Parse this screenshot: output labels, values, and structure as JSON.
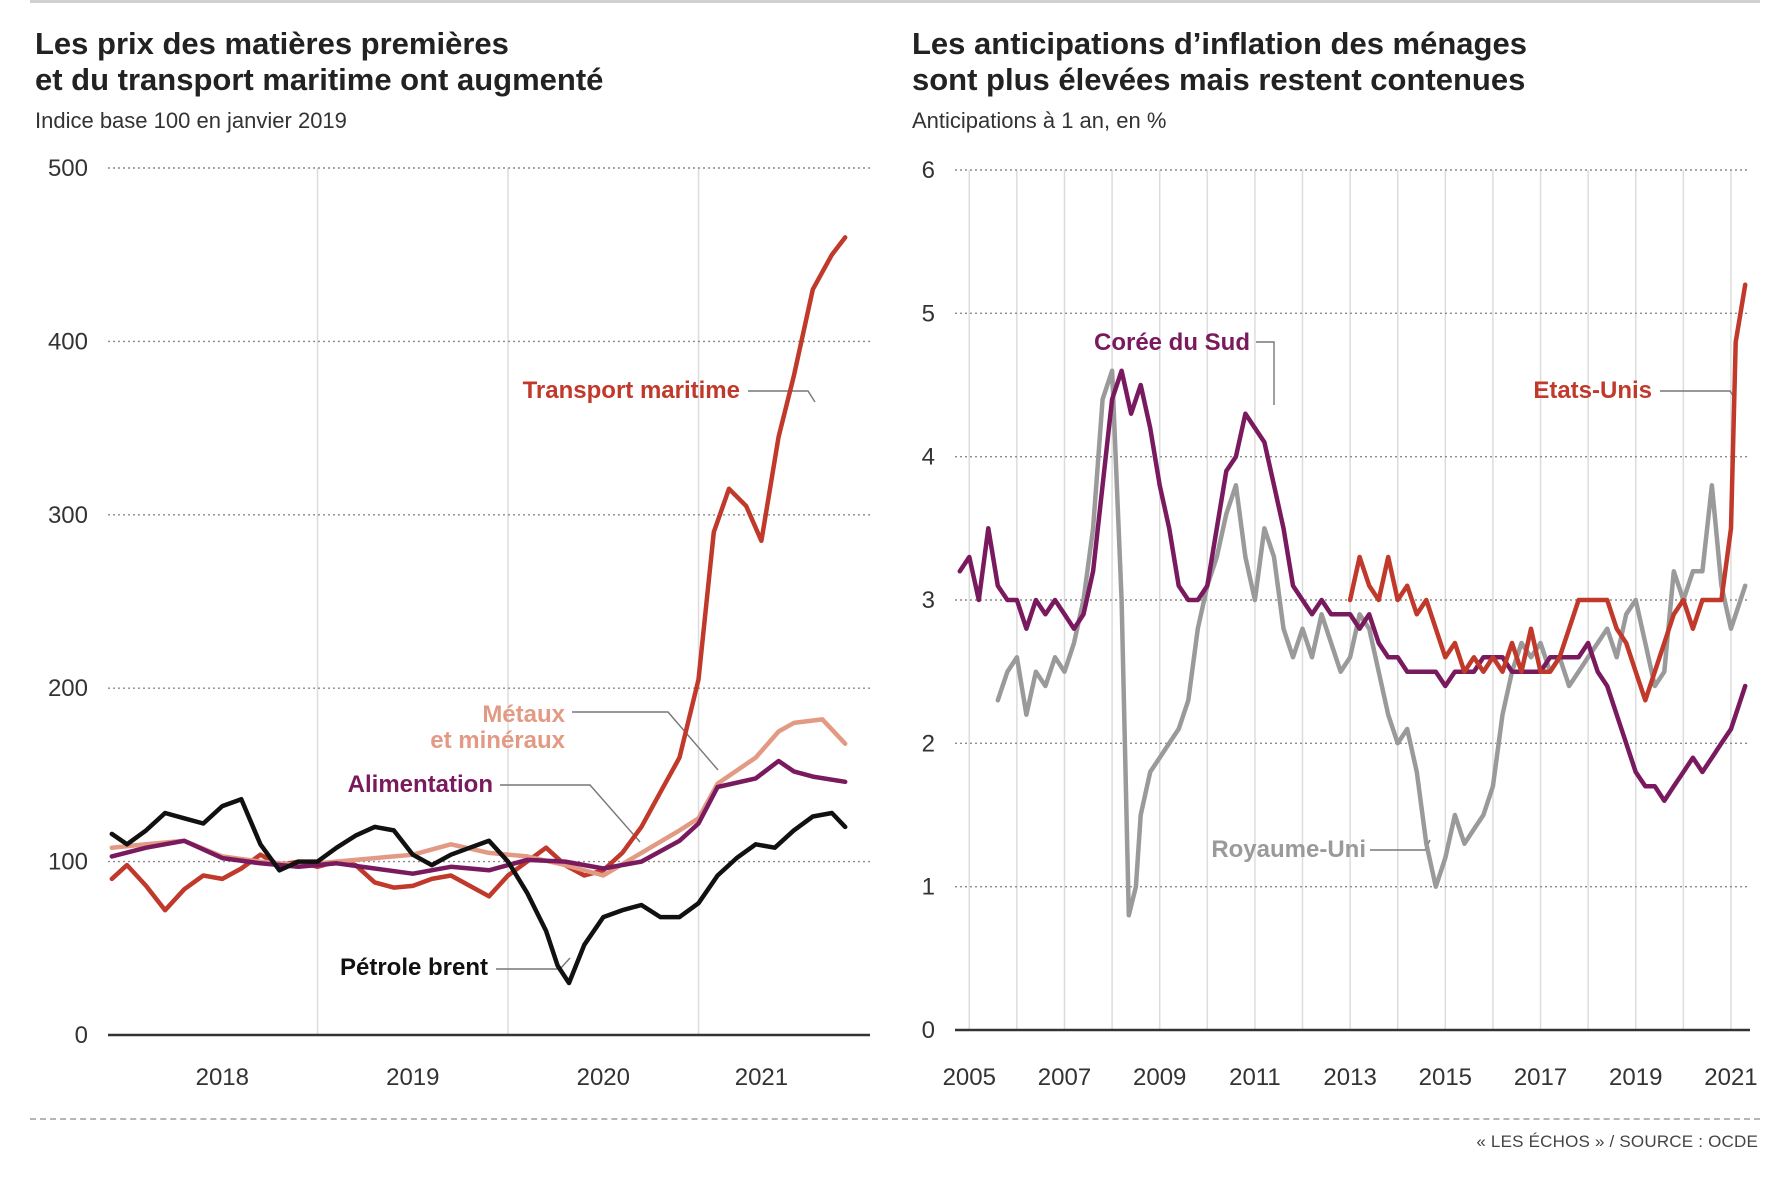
{
  "charts": {
    "left": {
      "title_line1": "Les prix des matières premières",
      "title_line2": "et du transport maritime ont augmenté",
      "subtitle": "Indice base 100 en janvier 2019"
    },
    "right": {
      "title_line1": "Les anticipations d’inflation des ménages",
      "title_line2": "sont plus élevées mais restent contenues",
      "subtitle": "Anticipations à 1 an, en %"
    }
  },
  "source": "« LES ÉCHOS » / SOURCE : OCDE",
  "chart_data": [
    {
      "type": "line",
      "title": "Les prix des matières premières et du transport maritime ont augmenté",
      "subtitle": "Indice base 100 en janvier 2019",
      "xlim": [
        2017.4,
        2021.4
      ],
      "ylim": [
        0,
        500
      ],
      "yticks": [
        0,
        100,
        200,
        300,
        400,
        500
      ],
      "xtick_labels": [
        {
          "label": "2018",
          "x": 2018.0
        },
        {
          "label": "2019",
          "x": 2019.0
        },
        {
          "label": "2020",
          "x": 2020.0
        },
        {
          "label": "2021",
          "x": 2020.83
        }
      ],
      "gridlines_x": [
        2018.5,
        2019.5,
        2020.5
      ],
      "grid": true,
      "series": [
        {
          "name": "Transport maritime",
          "color": "#c0392b",
          "x": [
            2017.42,
            2017.5,
            2017.6,
            2017.7,
            2017.8,
            2017.9,
            2018.0,
            2018.1,
            2018.2,
            2018.3,
            2018.4,
            2018.5,
            2018.6,
            2018.7,
            2018.8,
            2018.9,
            2019.0,
            2019.1,
            2019.2,
            2019.3,
            2019.4,
            2019.5,
            2019.6,
            2019.7,
            2019.8,
            2019.9,
            2020.0,
            2020.1,
            2020.2,
            2020.3,
            2020.4,
            2020.5,
            2020.58,
            2020.66,
            2020.75,
            2020.83,
            2020.92,
            2021.0,
            2021.1,
            2021.2,
            2021.27
          ],
          "y": [
            90,
            98,
            86,
            72,
            84,
            92,
            90,
            96,
            104,
            98,
            100,
            97,
            100,
            98,
            88,
            85,
            86,
            90,
            92,
            86,
            80,
            92,
            100,
            108,
            98,
            92,
            95,
            105,
            120,
            140,
            160,
            205,
            290,
            315,
            305,
            285,
            345,
            380,
            430,
            450,
            460
          ]
        },
        {
          "name": "Métaux et minéraux",
          "color": "#e39a85",
          "x": [
            2017.42,
            2017.6,
            2017.8,
            2018.0,
            2018.2,
            2018.4,
            2018.6,
            2018.8,
            2019.0,
            2019.2,
            2019.4,
            2019.6,
            2019.8,
            2020.0,
            2020.2,
            2020.4,
            2020.5,
            2020.6,
            2020.8,
            2020.92,
            2021.0,
            2021.15,
            2021.27
          ],
          "y": [
            108,
            110,
            112,
            103,
            100,
            98,
            100,
            102,
            104,
            110,
            105,
            103,
            98,
            92,
            105,
            118,
            125,
            145,
            160,
            175,
            180,
            182,
            168
          ]
        },
        {
          "name": "Alimentation",
          "color": "#7a1a5e",
          "x": [
            2017.42,
            2017.6,
            2017.8,
            2018.0,
            2018.2,
            2018.4,
            2018.6,
            2018.8,
            2019.0,
            2019.2,
            2019.4,
            2019.6,
            2019.8,
            2020.0,
            2020.2,
            2020.4,
            2020.5,
            2020.6,
            2020.8,
            2020.92,
            2021.0,
            2021.1,
            2021.27
          ],
          "y": [
            103,
            108,
            112,
            102,
            99,
            97,
            99,
            96,
            93,
            97,
            95,
            101,
            100,
            96,
            100,
            112,
            122,
            143,
            148,
            158,
            152,
            149,
            146
          ]
        },
        {
          "name": "Pétrole brent",
          "color": "#111111",
          "x": [
            2017.42,
            2017.5,
            2017.6,
            2017.7,
            2017.8,
            2017.9,
            2018.0,
            2018.1,
            2018.2,
            2018.3,
            2018.4,
            2018.5,
            2018.6,
            2018.7,
            2018.8,
            2018.9,
            2019.0,
            2019.1,
            2019.2,
            2019.3,
            2019.4,
            2019.5,
            2019.6,
            2019.7,
            2019.76,
            2019.82,
            2019.9,
            2020.0,
            2020.1,
            2020.2,
            2020.3,
            2020.4,
            2020.5,
            2020.6,
            2020.7,
            2020.8,
            2020.9,
            2021.0,
            2021.1,
            2021.2,
            2021.27
          ],
          "y": [
            116,
            110,
            118,
            128,
            125,
            122,
            132,
            136,
            110,
            95,
            100,
            100,
            108,
            115,
            120,
            118,
            104,
            98,
            104,
            108,
            112,
            100,
            82,
            60,
            40,
            30,
            52,
            68,
            72,
            75,
            68,
            68,
            76,
            92,
            102,
            110,
            108,
            118,
            126,
            128,
            120
          ]
        }
      ],
      "annotations": [
        {
          "text": "Transport maritime",
          "series": "Transport maritime"
        },
        {
          "text": "Métaux",
          "series": "Métaux et minéraux"
        },
        {
          "text": "et minéraux",
          "series": "Métaux et minéraux"
        },
        {
          "text": "Alimentation",
          "series": "Alimentation"
        },
        {
          "text": "Pétrole brent",
          "series": "Pétrole brent"
        }
      ]
    },
    {
      "type": "line",
      "title": "Les anticipations d’inflation des ménages sont plus élevées mais restent contenues",
      "subtitle": "Anticipations à 1 an, en %",
      "xlim": [
        2004.7,
        2021.4
      ],
      "ylim": [
        0,
        6
      ],
      "yticks": [
        0,
        1,
        2,
        3,
        4,
        5,
        6
      ],
      "xtick_labels": [
        {
          "label": "2005",
          "x": 2005
        },
        {
          "label": "2007",
          "x": 2007
        },
        {
          "label": "2009",
          "x": 2009
        },
        {
          "label": "2011",
          "x": 2011
        },
        {
          "label": "2013",
          "x": 2013
        },
        {
          "label": "2015",
          "x": 2015
        },
        {
          "label": "2017",
          "x": 2017
        },
        {
          "label": "2019",
          "x": 2019
        },
        {
          "label": "2021",
          "x": 2021
        }
      ],
      "gridlines_x": [
        2005,
        2006,
        2007,
        2008,
        2009,
        2010,
        2011,
        2012,
        2013,
        2014,
        2015,
        2016,
        2017,
        2018,
        2019,
        2020,
        2021
      ],
      "grid": true,
      "series": [
        {
          "name": "Royaume-Uni",
          "color": "#9a9a9a",
          "x": [
            2005.6,
            2005.8,
            2006.0,
            2006.2,
            2006.4,
            2006.6,
            2006.8,
            2007.0,
            2007.2,
            2007.4,
            2007.6,
            2007.8,
            2008.0,
            2008.2,
            2008.35,
            2008.5,
            2008.6,
            2008.8,
            2009.0,
            2009.2,
            2009.4,
            2009.6,
            2009.8,
            2010.0,
            2010.2,
            2010.4,
            2010.6,
            2010.8,
            2011.0,
            2011.2,
            2011.4,
            2011.6,
            2011.8,
            2012.0,
            2012.2,
            2012.4,
            2012.6,
            2012.8,
            2013.0,
            2013.2,
            2013.4,
            2013.6,
            2013.8,
            2014.0,
            2014.2,
            2014.4,
            2014.6,
            2014.8,
            2015.0,
            2015.2,
            2015.4,
            2015.6,
            2015.8,
            2016.0,
            2016.2,
            2016.4,
            2016.6,
            2016.8,
            2017.0,
            2017.2,
            2017.4,
            2017.6,
            2017.8,
            2018.0,
            2018.2,
            2018.4,
            2018.6,
            2018.8,
            2019.0,
            2019.2,
            2019.4,
            2019.6,
            2019.8,
            2020.0,
            2020.2,
            2020.4,
            2020.6,
            2020.8,
            2021.0,
            2021.2,
            2021.3
          ],
          "y": [
            2.3,
            2.5,
            2.6,
            2.2,
            2.5,
            2.4,
            2.6,
            2.5,
            2.7,
            3.0,
            3.5,
            4.4,
            4.6,
            3.0,
            0.8,
            1.0,
            1.5,
            1.8,
            1.9,
            2.0,
            2.1,
            2.3,
            2.8,
            3.1,
            3.3,
            3.6,
            3.8,
            3.3,
            3.0,
            3.5,
            3.3,
            2.8,
            2.6,
            2.8,
            2.6,
            2.9,
            2.7,
            2.5,
            2.6,
            2.9,
            2.8,
            2.5,
            2.2,
            2.0,
            2.1,
            1.8,
            1.3,
            1.0,
            1.2,
            1.5,
            1.3,
            1.4,
            1.5,
            1.7,
            2.2,
            2.5,
            2.7,
            2.6,
            2.7,
            2.5,
            2.6,
            2.4,
            2.5,
            2.6,
            2.7,
            2.8,
            2.6,
            2.9,
            3.0,
            2.7,
            2.4,
            2.5,
            3.2,
            3.0,
            3.2,
            3.2,
            3.8,
            3.1,
            2.8,
            3.0,
            3.1
          ]
        },
        {
          "name": "Corée du Sud",
          "color": "#7a1a5e",
          "x": [
            2004.8,
            2005.0,
            2005.2,
            2005.4,
            2005.6,
            2005.8,
            2006.0,
            2006.2,
            2006.4,
            2006.6,
            2006.8,
            2007.0,
            2007.2,
            2007.4,
            2007.6,
            2007.8,
            2008.0,
            2008.2,
            2008.4,
            2008.6,
            2008.8,
            2009.0,
            2009.2,
            2009.4,
            2009.6,
            2009.8,
            2010.0,
            2010.2,
            2010.4,
            2010.6,
            2010.8,
            2011.0,
            2011.2,
            2011.4,
            2011.6,
            2011.8,
            2012.0,
            2012.2,
            2012.4,
            2012.6,
            2012.8,
            2013.0,
            2013.2,
            2013.4,
            2013.6,
            2013.8,
            2014.0,
            2014.2,
            2014.4,
            2014.6,
            2014.8,
            2015.0,
            2015.2,
            2015.4,
            2015.6,
            2015.8,
            2016.0,
            2016.2,
            2016.4,
            2016.6,
            2016.8,
            2017.0,
            2017.2,
            2017.4,
            2017.6,
            2017.8,
            2018.0,
            2018.2,
            2018.4,
            2018.6,
            2018.8,
            2019.0,
            2019.2,
            2019.4,
            2019.6,
            2019.8,
            2020.0,
            2020.2,
            2020.4,
            2020.6,
            2020.8,
            2021.0,
            2021.2,
            2021.3
          ],
          "y": [
            3.2,
            3.3,
            3.0,
            3.5,
            3.1,
            3.0,
            3.0,
            2.8,
            3.0,
            2.9,
            3.0,
            2.9,
            2.8,
            2.9,
            3.2,
            3.8,
            4.4,
            4.6,
            4.3,
            4.5,
            4.2,
            3.8,
            3.5,
            3.1,
            3.0,
            3.0,
            3.1,
            3.5,
            3.9,
            4.0,
            4.3,
            4.2,
            4.1,
            3.8,
            3.5,
            3.1,
            3.0,
            2.9,
            3.0,
            2.9,
            2.9,
            2.9,
            2.8,
            2.9,
            2.7,
            2.6,
            2.6,
            2.5,
            2.5,
            2.5,
            2.5,
            2.4,
            2.5,
            2.5,
            2.5,
            2.6,
            2.6,
            2.6,
            2.5,
            2.5,
            2.5,
            2.5,
            2.6,
            2.6,
            2.6,
            2.6,
            2.7,
            2.5,
            2.4,
            2.2,
            2.0,
            1.8,
            1.7,
            1.7,
            1.6,
            1.7,
            1.8,
            1.9,
            1.8,
            1.9,
            2.0,
            2.1,
            2.3,
            2.4
          ]
        },
        {
          "name": "Etats-Unis",
          "color": "#c0392b",
          "x": [
            2013.0,
            2013.2,
            2013.4,
            2013.6,
            2013.8,
            2014.0,
            2014.2,
            2014.4,
            2014.6,
            2014.8,
            2015.0,
            2015.2,
            2015.4,
            2015.6,
            2015.8,
            2016.0,
            2016.2,
            2016.4,
            2016.6,
            2016.8,
            2017.0,
            2017.2,
            2017.4,
            2017.6,
            2017.8,
            2018.0,
            2018.2,
            2018.4,
            2018.6,
            2018.8,
            2019.0,
            2019.2,
            2019.4,
            2019.6,
            2019.8,
            2020.0,
            2020.2,
            2020.4,
            2020.6,
            2020.8,
            2021.0,
            2021.1,
            2021.2,
            2021.3
          ],
          "y": [
            3.0,
            3.3,
            3.1,
            3.0,
            3.3,
            3.0,
            3.1,
            2.9,
            3.0,
            2.8,
            2.6,
            2.7,
            2.5,
            2.6,
            2.5,
            2.6,
            2.5,
            2.7,
            2.5,
            2.8,
            2.5,
            2.5,
            2.6,
            2.8,
            3.0,
            3.0,
            3.0,
            3.0,
            2.8,
            2.7,
            2.5,
            2.3,
            2.5,
            2.7,
            2.9,
            3.0,
            2.8,
            3.0,
            3.0,
            3.0,
            3.5,
            4.8,
            5.0,
            5.2
          ]
        }
      ],
      "annotations": [
        {
          "text": "Corée du Sud",
          "series": "Corée du Sud"
        },
        {
          "text": "Etats-Unis",
          "series": "Etats-Unis"
        },
        {
          "text": "Royaume-Uni",
          "series": "Royaume-Uni"
        }
      ]
    }
  ]
}
